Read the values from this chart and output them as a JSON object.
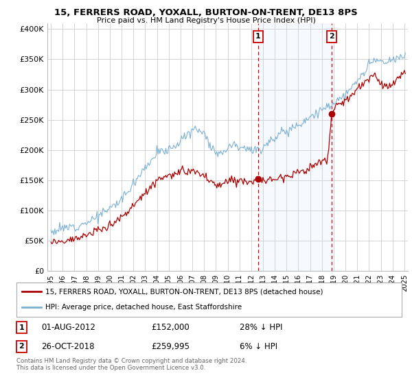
{
  "title": "15, FERRERS ROAD, YOXALL, BURTON-ON-TRENT, DE13 8PS",
  "subtitle": "Price paid vs. HM Land Registry's House Price Index (HPI)",
  "property_label": "15, FERRERS ROAD, YOXALL, BURTON-ON-TRENT, DE13 8PS (detached house)",
  "hpi_label": "HPI: Average price, detached house, East Staffordshire",
  "footnote": "Contains HM Land Registry data © Crown copyright and database right 2024.\nThis data is licensed under the Open Government Licence v3.0.",
  "sale1_date": "01-AUG-2012",
  "sale1_price": "£152,000",
  "sale1_hpi": "28% ↓ HPI",
  "sale2_date": "26-OCT-2018",
  "sale2_price": "£259,995",
  "sale2_hpi": "6% ↓ HPI",
  "ylim": [
    0,
    410000
  ],
  "yticks": [
    0,
    50000,
    100000,
    150000,
    200000,
    250000,
    300000,
    350000,
    400000
  ],
  "ytick_labels": [
    "£0",
    "£50K",
    "£100K",
    "£150K",
    "£200K",
    "£250K",
    "£300K",
    "£350K",
    "£400K"
  ],
  "property_color": "#aa0000",
  "hpi_color": "#7ab0d4",
  "sale1_x": 2012.58,
  "sale2_x": 2018.82,
  "sale1_y": 152000,
  "sale2_y": 259995,
  "background_color": "#ffffff",
  "grid_color": "#cccccc",
  "xlim_left": 1994.7,
  "xlim_right": 2025.3
}
